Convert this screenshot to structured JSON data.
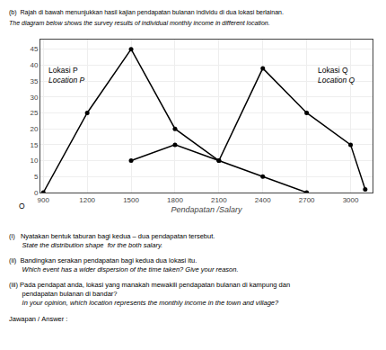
{
  "chart_data": {
    "type": "line",
    "title": "(b)  Rajah di bawah menunjukkan hasil kajian pendapatan bulanan individu di dua lokasi berlainan.",
    "subtitle": "The diagram below shows the survey results of individual monthly income in different location.",
    "x_label": "Pendapatan /Salary",
    "xlim": [
      880,
      3150
    ],
    "xticks": [
      900,
      1200,
      1500,
      1800,
      2100,
      2400,
      2700,
      3000
    ],
    "ylim": [
      0,
      48
    ],
    "yticks": [
      0,
      5,
      10,
      15,
      20,
      25,
      30,
      35,
      40,
      45
    ],
    "grid": true,
    "marker": "circle",
    "line_style": "solid",
    "series": [
      {
        "color": "#000000",
        "x": [
          900,
          1200,
          1500,
          1800,
          2100,
          2400,
          2700
        ],
        "values": [
          0,
          25,
          45,
          20,
          10,
          5,
          0
        ]
      },
      {
        "color": "#000000",
        "x": [
          1500,
          1800,
          2100,
          2400,
          2700,
          3000,
          3100
        ],
        "values": [
          10,
          15,
          10,
          39,
          25,
          15,
          1
        ]
      }
    ],
    "annotations": [
      [
        "Lokasi P",
        "Location P"
      ],
      [
        "Lokasi Q",
        "Location Q"
      ],
      [
        "O"
      ],
      [
        "(i)   Nyatakan bentuk taburan bagi kedua – dua pendapatan tersebut.",
        "       State the distribution shape  for the both salary."
      ],
      [
        "(ii)  Bandingkan serakan pendapatan bagi kedua dua lokasi itu.",
        "       Which event has a wider dispersion of the time taken? Give your reason."
      ],
      [
        "(iii) Pada pendapat anda, lokasi yang manakah mewakili pendapatan bulanan di kampung dan",
        "       pendapatan bulanan di bandar?",
        "       In your opinion, which location represents the monthly income in the town and village?"
      ],
      [
        "Jawapan / Answer :"
      ]
    ]
  }
}
